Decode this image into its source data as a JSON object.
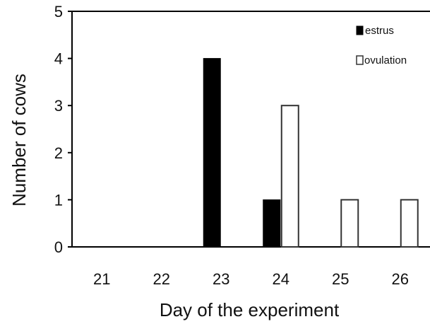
{
  "chart_data": {
    "type": "bar",
    "categories": [
      "21",
      "22",
      "23",
      "24",
      "25",
      "26"
    ],
    "series": [
      {
        "name": "estrus",
        "values": [
          0,
          0,
          4,
          1,
          0,
          0
        ],
        "fill": "#000000"
      },
      {
        "name": "ovulation",
        "values": [
          0,
          0,
          0,
          3,
          1,
          1
        ],
        "fill": "#ffffff"
      }
    ],
    "xlabel": "Day of the experiment",
    "ylabel": "Number of cows",
    "ylim": [
      0,
      5
    ],
    "yticks": [
      "0",
      "1",
      "2",
      "3",
      "4",
      "5"
    ],
    "grid": false,
    "legend_position": "top-right",
    "colors": {
      "axis": "#000000",
      "bar_outline": "#333333"
    }
  }
}
